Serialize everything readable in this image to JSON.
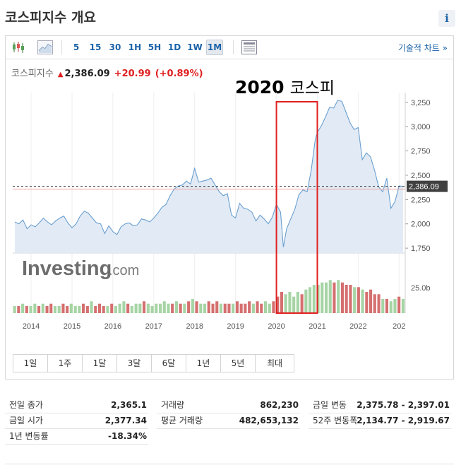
{
  "title": "코스피지수 개요",
  "info_label": "i",
  "toolbar": {
    "intervals": [
      "5",
      "15",
      "30",
      "1H",
      "5H",
      "1D",
      "1W",
      "1M"
    ],
    "active_interval": "1M",
    "tech_chart_label": "기술적 차트 »"
  },
  "quote": {
    "name": "코스피지수",
    "price": "2,386.09",
    "change": "+20.99",
    "change_pct": "(+0.89%)"
  },
  "annotation": {
    "year": "2020",
    "text": "코스피"
  },
  "watermark": {
    "brand": "Investing",
    "suffix": ".com"
  },
  "range_buttons": [
    "1일",
    "1주",
    "1달",
    "3달",
    "6달",
    "1년",
    "5년",
    "최대"
  ],
  "chart_data": {
    "type": "area",
    "x": [
      2013.6,
      2013.7,
      2013.8,
      2013.9,
      2014.0,
      2014.1,
      2014.2,
      2014.3,
      2014.4,
      2014.5,
      2014.6,
      2014.7,
      2014.8,
      2014.9,
      2015.0,
      2015.1,
      2015.2,
      2015.3,
      2015.4,
      2015.5,
      2015.6,
      2015.7,
      2015.8,
      2015.9,
      2016.0,
      2016.1,
      2016.2,
      2016.3,
      2016.4,
      2016.5,
      2016.6,
      2016.7,
      2016.8,
      2016.9,
      2017.0,
      2017.1,
      2017.2,
      2017.3,
      2017.4,
      2017.5,
      2017.6,
      2017.7,
      2017.8,
      2017.9,
      2018.0,
      2018.1,
      2018.2,
      2018.3,
      2018.4,
      2018.5,
      2018.6,
      2018.7,
      2018.8,
      2018.9,
      2019.0,
      2019.1,
      2019.2,
      2019.3,
      2019.4,
      2019.5,
      2019.6,
      2019.7,
      2019.8,
      2019.9,
      2020.0,
      2020.1,
      2020.17,
      2020.25,
      2020.35,
      2020.45,
      2020.55,
      2020.65,
      2020.75,
      2020.85,
      2020.95,
      2021.0,
      2021.1,
      2021.2,
      2021.3,
      2021.4,
      2021.5,
      2021.6,
      2021.7,
      2021.8,
      2021.9,
      2022.0,
      2022.1,
      2022.2,
      2022.3,
      2022.4,
      2022.5,
      2022.6,
      2022.7,
      2022.8,
      2022.9,
      2023.0,
      2023.1
    ],
    "y": [
      2020,
      2000,
      2040,
      1950,
      1990,
      1970,
      2010,
      2060,
      2020,
      1990,
      2030,
      2060,
      2080,
      2010,
      1960,
      2000,
      2080,
      2130,
      2110,
      2060,
      2010,
      2000,
      1900,
      1980,
      1920,
      1890,
      1970,
      2000,
      2010,
      1980,
      1990,
      2050,
      2040,
      2020,
      2060,
      2110,
      2170,
      2200,
      2290,
      2360,
      2390,
      2400,
      2440,
      2410,
      2570,
      2430,
      2440,
      2450,
      2470,
      2400,
      2330,
      2290,
      2310,
      2090,
      2060,
      2210,
      2160,
      2150,
      2120,
      2030,
      2090,
      2050,
      2000,
      2070,
      2200,
      2120,
      1760,
      1950,
      2050,
      2150,
      2300,
      2350,
      2330,
      2550,
      2870,
      2940,
      3010,
      3100,
      3200,
      3190,
      3270,
      3260,
      3150,
      3040,
      2970,
      2990,
      2660,
      2730,
      2690,
      2550,
      2380,
      2330,
      2470,
      2160,
      2230,
      2390,
      2386
    ],
    "y_ticks": [
      "3,250",
      "3,000",
      "2,750",
      "2,500",
      "2,250",
      "2,000",
      "1,750"
    ],
    "ylim": [
      1700,
      3350
    ],
    "x_ticks": [
      "2014",
      "2015",
      "2016",
      "2017",
      "2018",
      "2019",
      "2020",
      "2021",
      "2022",
      "202"
    ],
    "last_value_label": "2,386.09",
    "volume_label": "25.0b",
    "volume": [
      3,
      3,
      4,
      3,
      3,
      4,
      3,
      4,
      3,
      4,
      3,
      3,
      4,
      3,
      4,
      3,
      3,
      4,
      3,
      5,
      3,
      4,
      3,
      3,
      4,
      3,
      4,
      5,
      4,
      3,
      4,
      4,
      5,
      4,
      3,
      4,
      4,
      5,
      4,
      4,
      5,
      4,
      4,
      5,
      6,
      5,
      4,
      4,
      5,
      4,
      5,
      4,
      4,
      4,
      4,
      5,
      4,
      4,
      5,
      4,
      5,
      4,
      5,
      4,
      5,
      7,
      9,
      8,
      9,
      7,
      9,
      8,
      10,
      11,
      12,
      12,
      13,
      13,
      14,
      13,
      14,
      13,
      12,
      12,
      11,
      11,
      10,
      9,
      10,
      8,
      8,
      6,
      6,
      5,
      6,
      7,
      6
    ],
    "volume_up": [
      1,
      0,
      1,
      0,
      1,
      1,
      0,
      1,
      0,
      0,
      1,
      1,
      0,
      0,
      1,
      1,
      1,
      0,
      0,
      1,
      0,
      0,
      0,
      1,
      0,
      1,
      1,
      1,
      0,
      1,
      1,
      1,
      0,
      1,
      1,
      1,
      1,
      1,
      1,
      0,
      1,
      0,
      1,
      0,
      1,
      0,
      1,
      1,
      0,
      0,
      0,
      1,
      0,
      0,
      1,
      0,
      0,
      0,
      0,
      1,
      0,
      0,
      1,
      1,
      0,
      0,
      0,
      1,
      1,
      1,
      1,
      0,
      1,
      1,
      1,
      1,
      1,
      1,
      1,
      0,
      1,
      0,
      0,
      0,
      1,
      0,
      1,
      0,
      0,
      0,
      0,
      1,
      0,
      1,
      1,
      0,
      1
    ]
  },
  "stats": {
    "col1": [
      {
        "k": "전일 종가",
        "v": "2,365.1"
      },
      {
        "k": "금일 시가",
        "v": "2,377.34"
      },
      {
        "k": "1년 변동률",
        "v": "-18.34%"
      }
    ],
    "col2": [
      {
        "k": "거래량",
        "v": "862,230"
      },
      {
        "k": "평균 거래량",
        "v": "482,653,132"
      }
    ],
    "col3": [
      {
        "k": "금일 변동",
        "v": "2,375.78 - 2,397.01"
      },
      {
        "k": "52주 변동폭",
        "v": "2,134.77 - 2,919.67"
      }
    ]
  },
  "colors": {
    "line": "#6a9fd0",
    "area": "#e2ebf5",
    "volume_up": "#a6d4a4",
    "volume_down": "#d56f6f",
    "highlight_box": "#e02020",
    "last_tag": "#404040"
  }
}
